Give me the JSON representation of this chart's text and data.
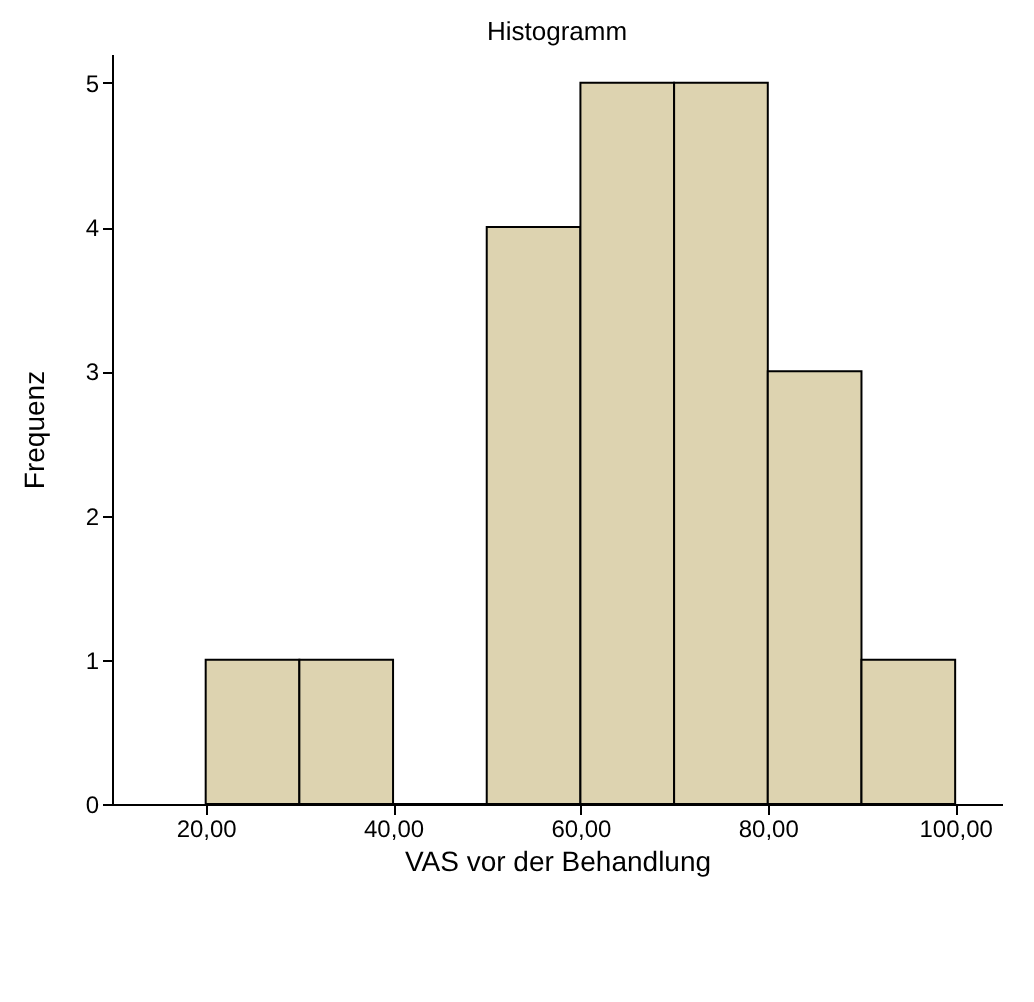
{
  "chart_data": {
    "type": "histogram",
    "title": "Histogramm",
    "xlabel": "VAS vor der Behandlung",
    "ylabel": "Frequenz",
    "bins": [
      20,
      30,
      40,
      50,
      60,
      70,
      80,
      90,
      100
    ],
    "values": [
      1,
      1,
      0,
      4,
      5,
      5,
      3,
      1
    ],
    "color": "#ddd3b0",
    "xlim": [
      10,
      105
    ],
    "ylim": [
      0,
      5.2
    ],
    "xticks": [
      {
        "value": 20,
        "label": "20,00"
      },
      {
        "value": 40,
        "label": "40,00"
      },
      {
        "value": 60,
        "label": "60,00"
      },
      {
        "value": 80,
        "label": "80,00"
      },
      {
        "value": 100,
        "label": "100,00"
      }
    ],
    "yticks": [
      0,
      1,
      2,
      3,
      4,
      5
    ]
  }
}
